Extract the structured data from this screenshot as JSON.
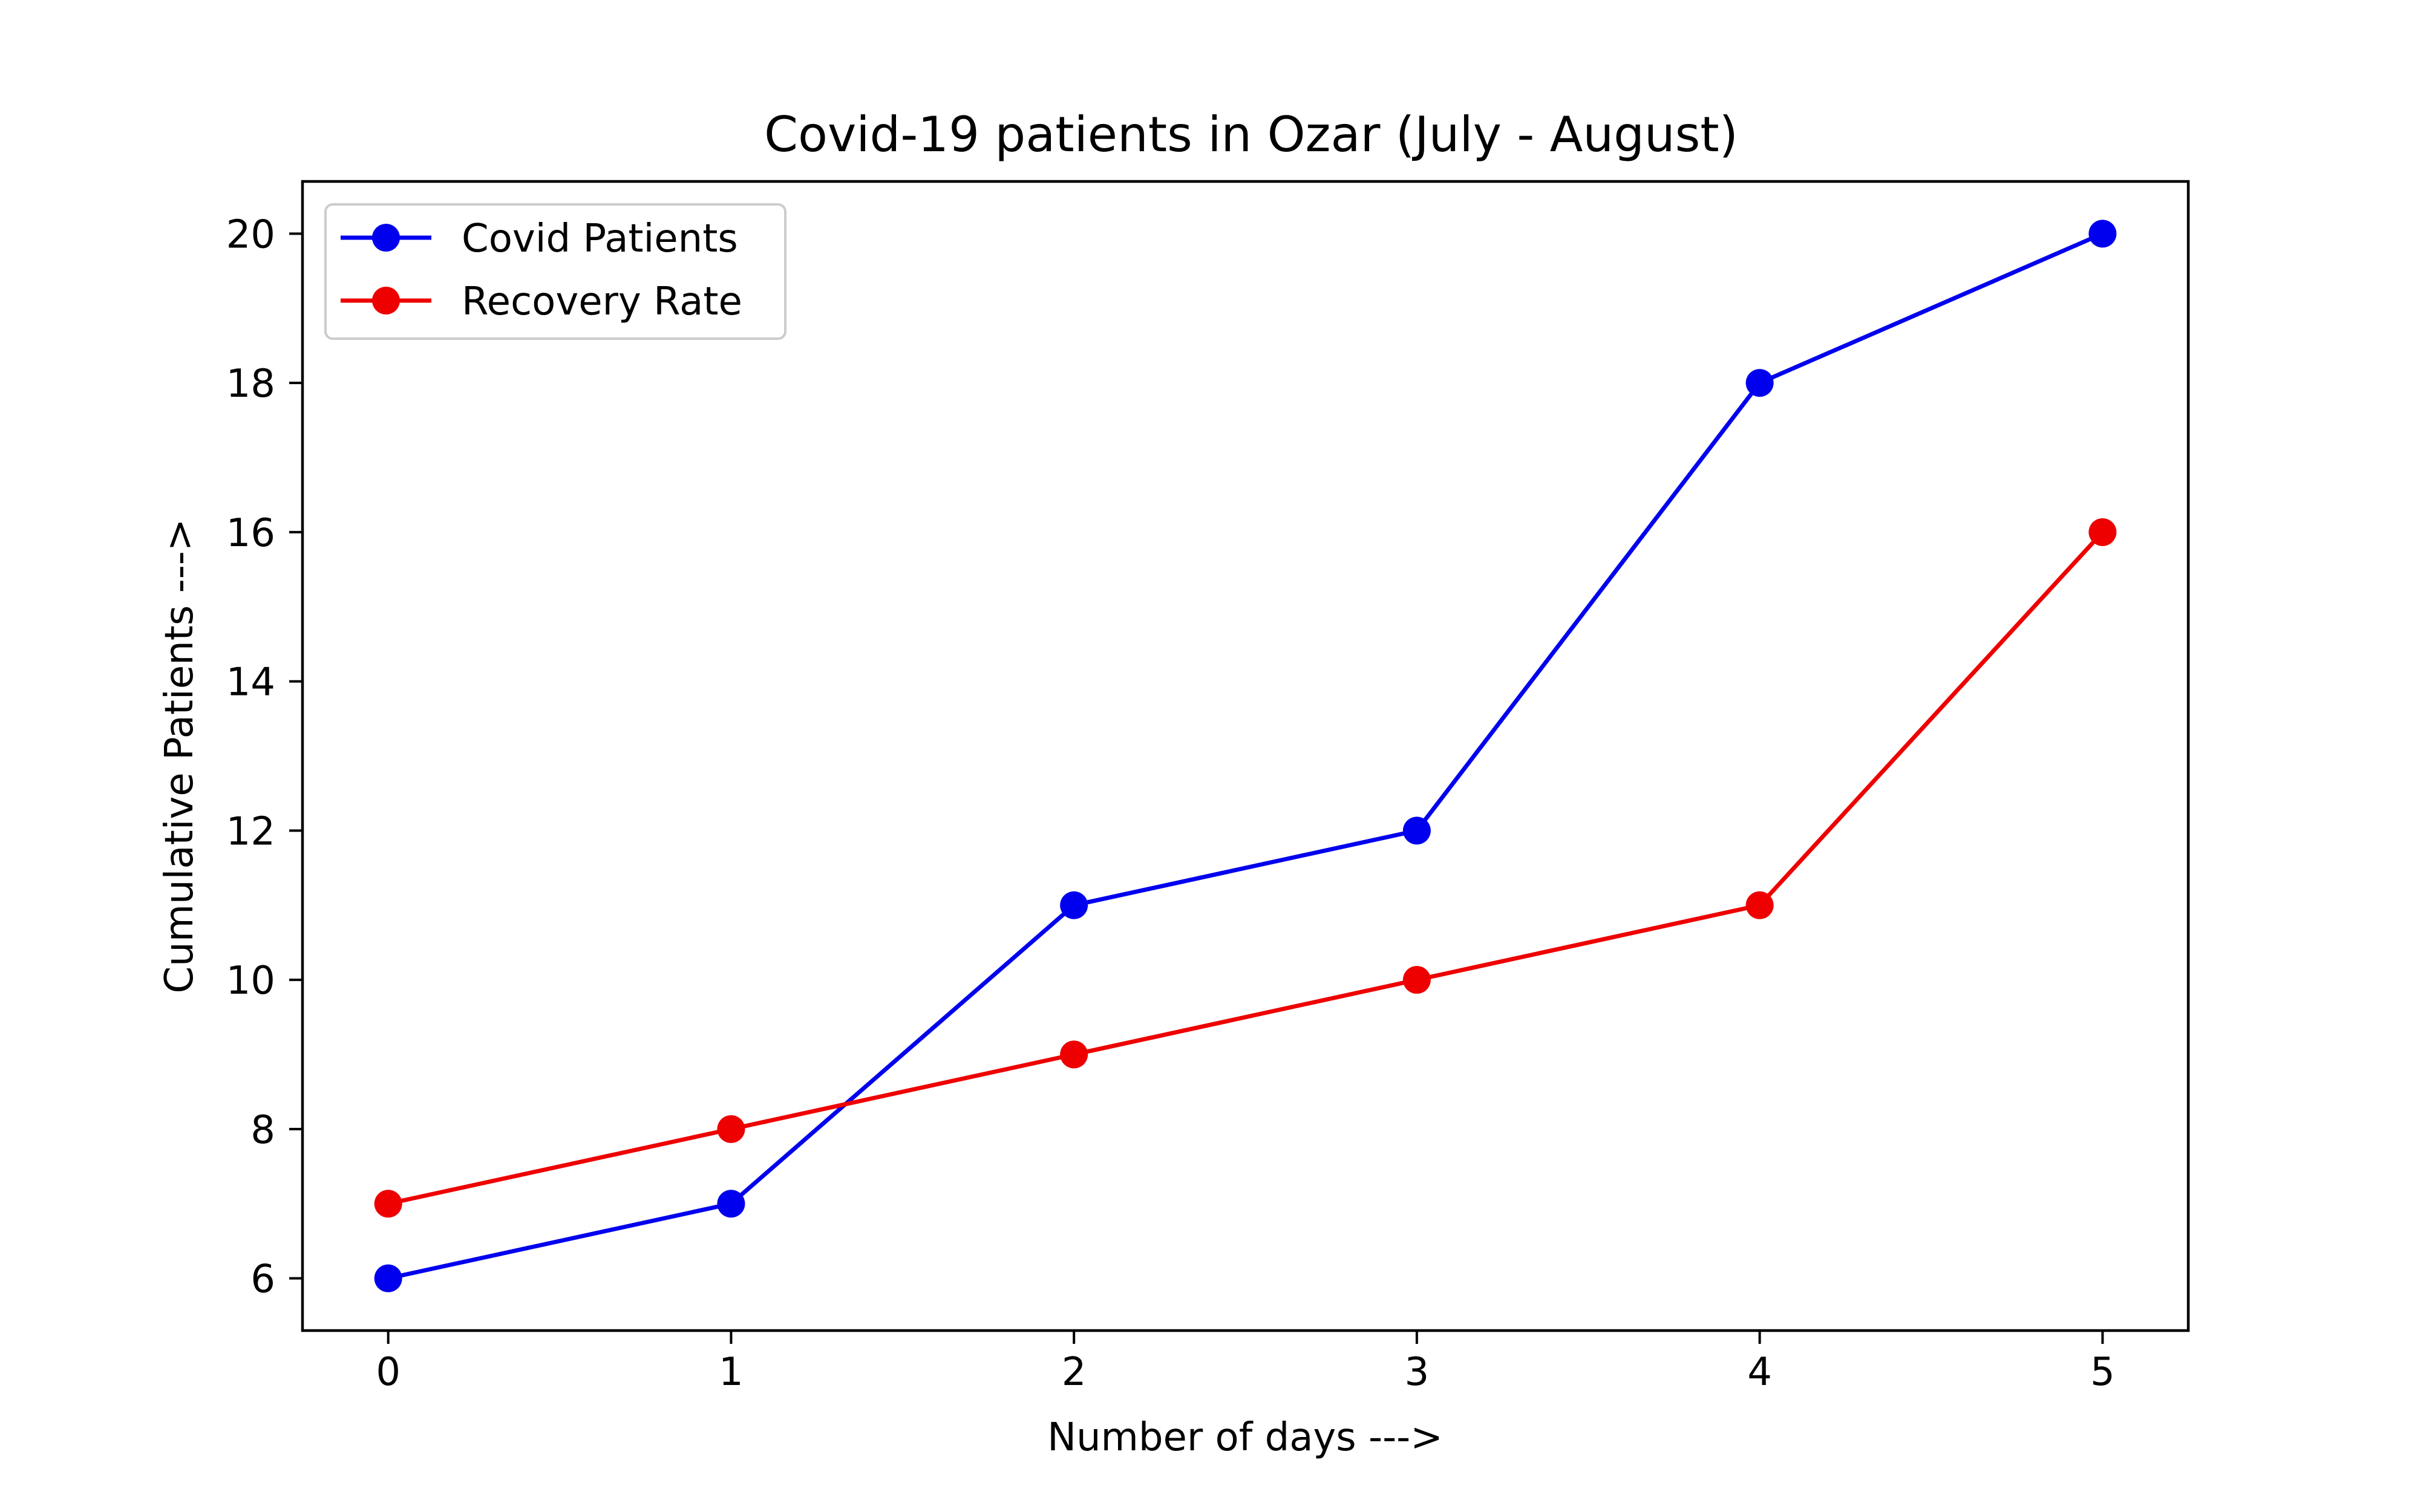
{
  "chart_data": {
    "type": "line",
    "title": "Covid-19 patients in Ozar (July - August)",
    "xlabel": "Number of days --->",
    "ylabel": "Cumulative Patients --->",
    "x": [
      0,
      1,
      2,
      3,
      4,
      5
    ],
    "xlim": [
      -0.25,
      5.25
    ],
    "ylim": [
      5.3,
      20.7
    ],
    "xticks": [
      "0",
      "1",
      "2",
      "3",
      "4",
      "5"
    ],
    "yticks": [
      "6",
      "8",
      "10",
      "12",
      "14",
      "16",
      "18",
      "20"
    ],
    "grid": false,
    "legend_position": "top-left",
    "series": [
      {
        "name": "Covid Patients",
        "color": "#0000ee",
        "marker": "circle",
        "values": [
          6,
          7,
          11,
          12,
          18,
          20
        ]
      },
      {
        "name": "Recovery Rate",
        "color": "#ee0000",
        "marker": "circle",
        "values": [
          7,
          8,
          9,
          10,
          11,
          16
        ]
      }
    ]
  }
}
